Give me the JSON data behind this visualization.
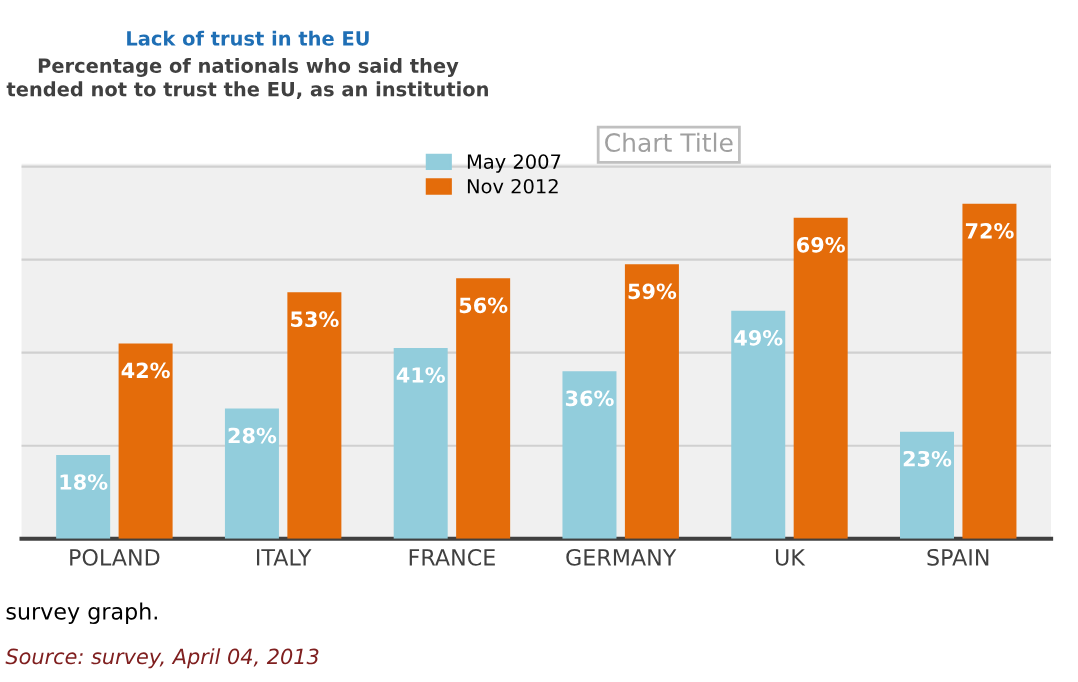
{
  "chart_data": {
    "type": "bar",
    "title": "Lack of trust in the EU",
    "subtitle": "Percentage of nationals who said they\ntended not to trust the EU, as an institution",
    "categories": [
      "POLAND",
      "ITALY",
      "FRANCE",
      "GERMANY",
      "UK",
      "SPAIN"
    ],
    "series": [
      {
        "name": "May 2007",
        "color": "#92cddc",
        "values": [
          18,
          28,
          41,
          36,
          49,
          23
        ],
        "value_labels": [
          "18%",
          "28%",
          "41%",
          "36%",
          "49%",
          "23%"
        ]
      },
      {
        "name": "Nov 2012",
        "color": "#e46c0a",
        "values": [
          42,
          53,
          56,
          59,
          69,
          72
        ],
        "value_labels": [
          "42%",
          "53%",
          "56%",
          "59%",
          "69%",
          "72%"
        ]
      }
    ],
    "grid": "y",
    "legend": "top left",
    "tick_labels": "x",
    "annotations": [
      "Chart Title",
      "survey graph.",
      "Source: survey, April 04, 2013"
    ]
  }
}
